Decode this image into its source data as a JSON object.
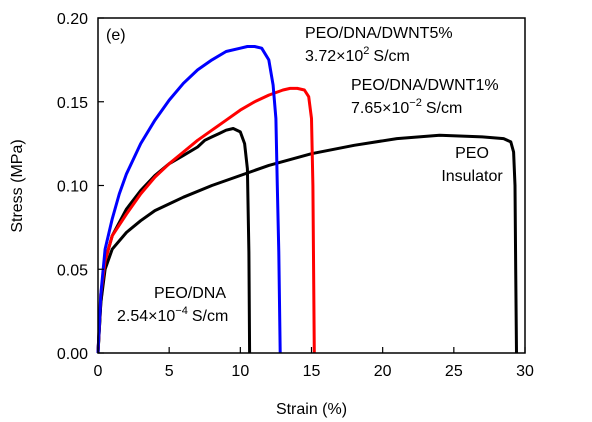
{
  "chart_data": {
    "type": "line",
    "panel_label": "(e)",
    "xlabel": "Strain (%)",
    "ylabel": "Stress (MPa)",
    "xlim": [
      0,
      30
    ],
    "ylim": [
      0,
      0.2
    ],
    "xticks": [
      0,
      5,
      10,
      15,
      20,
      25,
      30
    ],
    "xtick_labels": [
      "0",
      "5",
      "10",
      "15",
      "20",
      "25",
      "30"
    ],
    "yticks": [
      0,
      0.05,
      0.1,
      0.15,
      0.2
    ],
    "ytick_labels": [
      "0.00",
      "0.05",
      "0.10",
      "0.15",
      "0.20"
    ],
    "grid": false,
    "series": [
      {
        "name": "PEO",
        "color": "#000000",
        "x": [
          0,
          0.2,
          0.5,
          1,
          2,
          3,
          4,
          5,
          6,
          8,
          10,
          12,
          15,
          18,
          21,
          24,
          27,
          28.5,
          29,
          29.2,
          29.3,
          29.35,
          29.4
        ],
        "y": [
          0,
          0.03,
          0.05,
          0.062,
          0.072,
          0.079,
          0.085,
          0.089,
          0.093,
          0.1,
          0.106,
          0.112,
          0.119,
          0.124,
          0.128,
          0.13,
          0.129,
          0.128,
          0.126,
          0.12,
          0.1,
          0.05,
          0
        ]
      },
      {
        "name": "PEO/DNA",
        "color": "#000000",
        "x": [
          0,
          0.2,
          0.5,
          1,
          2,
          3,
          4,
          5,
          6,
          7,
          7.5,
          8,
          8.5,
          9,
          9.5,
          10,
          10.3,
          10.5,
          10.6,
          10.65
        ],
        "y": [
          0,
          0.03,
          0.055,
          0.07,
          0.086,
          0.097,
          0.106,
          0.113,
          0.118,
          0.123,
          0.127,
          0.129,
          0.131,
          0.133,
          0.134,
          0.132,
          0.125,
          0.11,
          0.06,
          0
        ]
      },
      {
        "name": "PEO/DNA/DWNT1%",
        "color": "#ff0000",
        "x": [
          0,
          0.2,
          0.5,
          1,
          2,
          3,
          4,
          5,
          6,
          7,
          8,
          9,
          10,
          11,
          12,
          13,
          13.5,
          14,
          14.5,
          14.8,
          15,
          15.1,
          15.15,
          15.2
        ],
        "y": [
          0,
          0.035,
          0.055,
          0.07,
          0.083,
          0.095,
          0.105,
          0.113,
          0.12,
          0.127,
          0.133,
          0.139,
          0.145,
          0.15,
          0.154,
          0.157,
          0.158,
          0.158,
          0.157,
          0.153,
          0.14,
          0.1,
          0.05,
          0
        ]
      },
      {
        "name": "PEO/DNA/DWNT5%",
        "color": "#0000ff",
        "x": [
          0,
          0.2,
          0.5,
          1,
          1.5,
          2,
          3,
          4,
          5,
          6,
          7,
          8,
          9,
          10,
          10.5,
          11,
          11.5,
          12,
          12.3,
          12.5,
          12.6,
          12.7,
          12.75,
          12.8
        ],
        "y": [
          0,
          0.035,
          0.062,
          0.08,
          0.095,
          0.107,
          0.125,
          0.139,
          0.151,
          0.161,
          0.169,
          0.175,
          0.18,
          0.182,
          0.183,
          0.183,
          0.182,
          0.175,
          0.16,
          0.14,
          0.1,
          0.06,
          0.03,
          0
        ]
      }
    ],
    "annotations": [
      {
        "series": "PEO/DNA/DWNT5%",
        "line1": "PEO/DNA/DWNT5%",
        "line2_prefix": "3.72",
        "line2_mult": "×",
        "line2_base": "10",
        "line2_exp": "2",
        "line2_unit": "S/cm"
      },
      {
        "series": "PEO/DNA/DWNT1%",
        "line1": "PEO/DNA/DWNT1%",
        "line2_prefix": "7.65",
        "line2_mult": "×",
        "line2_base": "10",
        "line2_exp": "−2",
        "line2_unit": "S/cm"
      },
      {
        "series": "PEO",
        "line1": "PEO",
        "line2": "Insulator"
      },
      {
        "series": "PEO/DNA",
        "line1": "PEO/DNA",
        "line2_prefix": "2.54",
        "line2_mult": "×",
        "line2_base": "10",
        "line2_exp": "−4",
        "line2_unit": "S/cm"
      }
    ]
  }
}
